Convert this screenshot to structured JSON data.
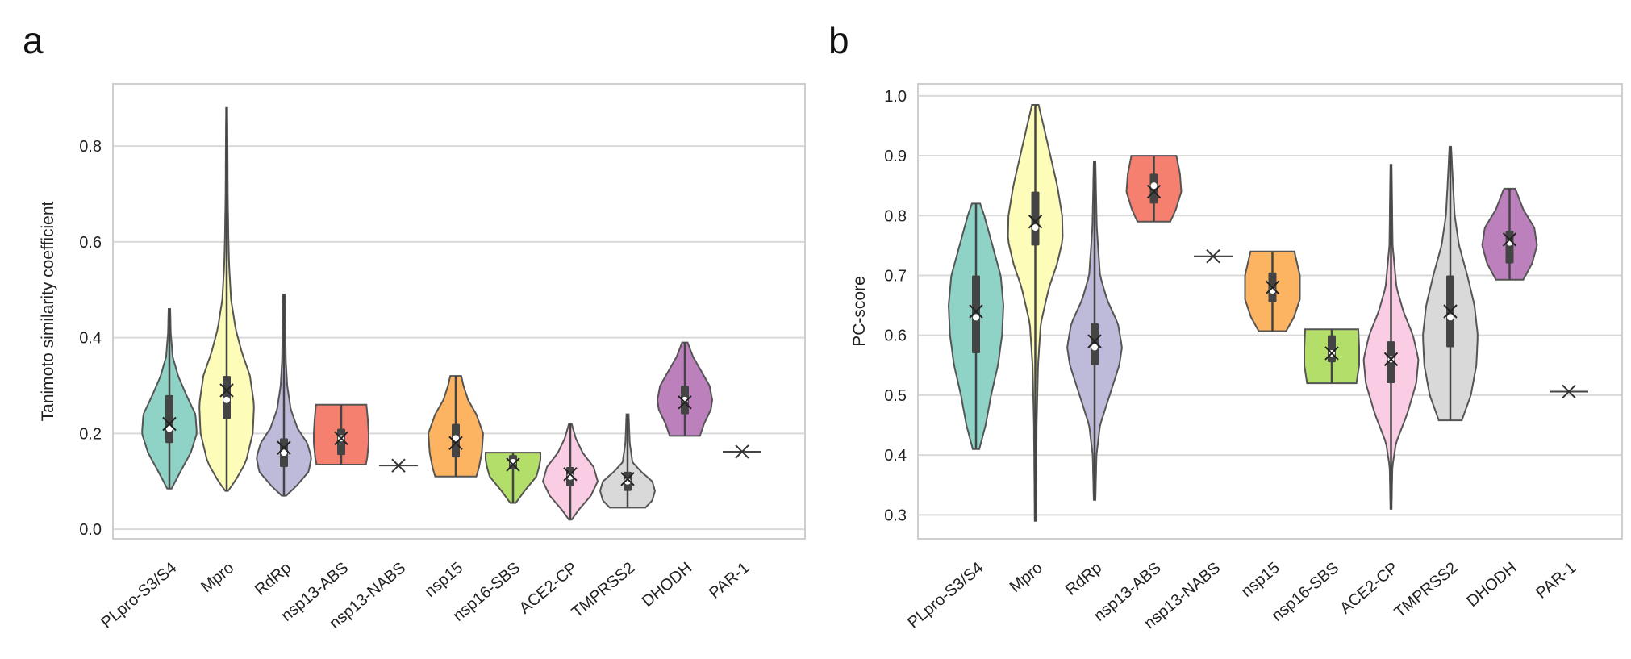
{
  "chart_data": [
    {
      "panel": "a",
      "type": "violin",
      "ylabel": "Tanimoto similarity coefficient",
      "xlabel": "",
      "ylim": [
        -0.02,
        0.93
      ],
      "yticks": [
        0.0,
        0.2,
        0.4,
        0.6,
        0.8
      ],
      "ytick_labels": [
        "0.0",
        "0.2",
        "0.4",
        "0.6",
        "0.8"
      ],
      "grid": true,
      "categories": [
        "PLpro-S3/S4",
        "Mpro",
        "RdRp",
        "nsp13-ABS",
        "nsp13-NABS",
        "nsp15",
        "nsp16-SBS",
        "ACE2-CP",
        "TMPRSS2",
        "DHODH",
        "PAR-1"
      ],
      "colors": [
        "#8fd3c7",
        "#fdfcb8",
        "#bebad9",
        "#f6806f",
        "#ffffff",
        "#fdb462",
        "#b3de69",
        "#fbcde4",
        "#d9d9d9",
        "#bc80bd",
        "#ffffff"
      ],
      "violins": [
        {
          "name": "PLpro-S3/S4",
          "min": 0.085,
          "max": 0.46,
          "q1": 0.18,
          "median": 0.21,
          "q3": 0.28,
          "mean": 0.22,
          "profile": [
            [
              0.085,
              0.08
            ],
            [
              0.12,
              0.4
            ],
            [
              0.16,
              0.78
            ],
            [
              0.2,
              1.0
            ],
            [
              0.24,
              0.95
            ],
            [
              0.28,
              0.62
            ],
            [
              0.32,
              0.32
            ],
            [
              0.36,
              0.12
            ],
            [
              0.41,
              0.05
            ],
            [
              0.46,
              0.03
            ]
          ]
        },
        {
          "name": "Mpro",
          "min": 0.08,
          "max": 0.88,
          "q1": 0.23,
          "median": 0.27,
          "q3": 0.32,
          "mean": 0.29,
          "profile": [
            [
              0.08,
              0.05
            ],
            [
              0.1,
              0.3
            ],
            [
              0.14,
              0.7
            ],
            [
              0.2,
              0.95
            ],
            [
              0.26,
              1.0
            ],
            [
              0.32,
              0.85
            ],
            [
              0.37,
              0.55
            ],
            [
              0.42,
              0.32
            ],
            [
              0.48,
              0.16
            ],
            [
              0.55,
              0.09
            ],
            [
              0.62,
              0.06
            ],
            [
              0.7,
              0.04
            ],
            [
              0.8,
              0.03
            ],
            [
              0.88,
              0.02
            ]
          ]
        },
        {
          "name": "RdRp",
          "min": 0.07,
          "max": 0.49,
          "q1": 0.13,
          "median": 0.16,
          "q3": 0.19,
          "mean": 0.17,
          "profile": [
            [
              0.07,
              0.08
            ],
            [
              0.09,
              0.45
            ],
            [
              0.12,
              0.9
            ],
            [
              0.15,
              1.0
            ],
            [
              0.18,
              0.85
            ],
            [
              0.21,
              0.5
            ],
            [
              0.25,
              0.25
            ],
            [
              0.3,
              0.12
            ],
            [
              0.35,
              0.07
            ],
            [
              0.42,
              0.05
            ],
            [
              0.49,
              0.03
            ]
          ]
        },
        {
          "name": "nsp13-ABS",
          "min": 0.135,
          "max": 0.26,
          "q1": 0.155,
          "median": 0.19,
          "q3": 0.21,
          "mean": 0.19,
          "profile": [
            [
              0.135,
              0.9
            ],
            [
              0.15,
              0.95
            ],
            [
              0.18,
              1.0
            ],
            [
              0.2,
              1.0
            ],
            [
              0.23,
              0.97
            ],
            [
              0.26,
              0.92
            ]
          ]
        },
        {
          "name": "nsp13-NABS",
          "single": 0.133
        },
        {
          "name": "nsp15",
          "min": 0.11,
          "max": 0.32,
          "q1": 0.15,
          "median": 0.19,
          "q3": 0.22,
          "mean": 0.18,
          "profile": [
            [
              0.11,
              0.75
            ],
            [
              0.13,
              0.85
            ],
            [
              0.16,
              0.95
            ],
            [
              0.2,
              1.0
            ],
            [
              0.24,
              0.75
            ],
            [
              0.27,
              0.45
            ],
            [
              0.3,
              0.28
            ],
            [
              0.32,
              0.2
            ]
          ]
        },
        {
          "name": "nsp16-SBS",
          "min": 0.055,
          "max": 0.16,
          "q1": 0.125,
          "median": 0.14,
          "q3": 0.155,
          "mean": 0.135,
          "profile": [
            [
              0.055,
              0.1
            ],
            [
              0.08,
              0.42
            ],
            [
              0.11,
              0.85
            ],
            [
              0.13,
              0.95
            ],
            [
              0.145,
              1.0
            ],
            [
              0.16,
              1.0
            ]
          ]
        },
        {
          "name": "ACE2-CP",
          "min": 0.02,
          "max": 0.22,
          "q1": 0.09,
          "median": 0.11,
          "q3": 0.13,
          "mean": 0.115,
          "profile": [
            [
              0.02,
              0.05
            ],
            [
              0.04,
              0.3
            ],
            [
              0.07,
              0.75
            ],
            [
              0.1,
              1.0
            ],
            [
              0.13,
              0.85
            ],
            [
              0.16,
              0.45
            ],
            [
              0.19,
              0.2
            ],
            [
              0.22,
              0.05
            ]
          ]
        },
        {
          "name": "TMPRSS2",
          "min": 0.045,
          "max": 0.24,
          "q1": 0.08,
          "median": 0.1,
          "q3": 0.12,
          "mean": 0.105,
          "profile": [
            [
              0.045,
              0.65
            ],
            [
              0.06,
              0.9
            ],
            [
              0.08,
              1.0
            ],
            [
              0.1,
              0.9
            ],
            [
              0.12,
              0.5
            ],
            [
              0.14,
              0.18
            ],
            [
              0.18,
              0.08
            ],
            [
              0.24,
              0.04
            ]
          ]
        },
        {
          "name": "DHODH",
          "min": 0.195,
          "max": 0.39,
          "q1": 0.24,
          "median": 0.27,
          "q3": 0.3,
          "mean": 0.265,
          "profile": [
            [
              0.195,
              0.55
            ],
            [
              0.22,
              0.7
            ],
            [
              0.25,
              0.95
            ],
            [
              0.27,
              1.0
            ],
            [
              0.3,
              0.9
            ],
            [
              0.33,
              0.6
            ],
            [
              0.36,
              0.3
            ],
            [
              0.39,
              0.1
            ]
          ]
        },
        {
          "name": "PAR-1",
          "single": 0.162
        }
      ]
    },
    {
      "panel": "b",
      "type": "violin",
      "ylabel": "PC-score",
      "xlabel": "",
      "ylim": [
        0.26,
        1.02
      ],
      "yticks": [
        0.3,
        0.4,
        0.5,
        0.6,
        0.7,
        0.8,
        0.9,
        1.0
      ],
      "ytick_labels": [
        "0.3",
        "0.4",
        "0.5",
        "0.6",
        "0.7",
        "0.8",
        "0.9",
        "1.0"
      ],
      "grid": true,
      "categories": [
        "PLpro-S3/S4",
        "Mpro",
        "RdRp",
        "nsp13-ABS",
        "nsp13-NABS",
        "nsp15",
        "nsp16-SBS",
        "ACE2-CP",
        "TMPRSS2",
        "DHODH",
        "PAR-1"
      ],
      "colors": [
        "#8fd3c7",
        "#fdfcb8",
        "#bebad9",
        "#f6806f",
        "#ffffff",
        "#fdb462",
        "#b3de69",
        "#fbcde4",
        "#d9d9d9",
        "#bc80bd",
        "#ffffff"
      ],
      "violins": [
        {
          "name": "PLpro-S3/S4",
          "min": 0.41,
          "max": 0.82,
          "q1": 0.57,
          "median": 0.63,
          "q3": 0.7,
          "mean": 0.64,
          "profile": [
            [
              0.41,
              0.12
            ],
            [
              0.45,
              0.35
            ],
            [
              0.5,
              0.55
            ],
            [
              0.55,
              0.8
            ],
            [
              0.6,
              0.95
            ],
            [
              0.65,
              1.0
            ],
            [
              0.7,
              0.9
            ],
            [
              0.75,
              0.6
            ],
            [
              0.8,
              0.3
            ],
            [
              0.82,
              0.15
            ]
          ]
        },
        {
          "name": "Mpro",
          "min": 0.29,
          "max": 0.985,
          "q1": 0.75,
          "median": 0.78,
          "q3": 0.84,
          "mean": 0.79,
          "profile": [
            [
              0.29,
              0.02
            ],
            [
              0.45,
              0.05
            ],
            [
              0.55,
              0.1
            ],
            [
              0.62,
              0.2
            ],
            [
              0.68,
              0.5
            ],
            [
              0.72,
              0.8
            ],
            [
              0.76,
              1.0
            ],
            [
              0.8,
              0.98
            ],
            [
              0.85,
              0.8
            ],
            [
              0.9,
              0.55
            ],
            [
              0.95,
              0.3
            ],
            [
              0.985,
              0.12
            ]
          ]
        },
        {
          "name": "RdRp",
          "min": 0.325,
          "max": 0.89,
          "q1": 0.55,
          "median": 0.58,
          "q3": 0.62,
          "mean": 0.59,
          "profile": [
            [
              0.325,
              0.03
            ],
            [
              0.4,
              0.07
            ],
            [
              0.45,
              0.2
            ],
            [
              0.5,
              0.55
            ],
            [
              0.55,
              0.9
            ],
            [
              0.58,
              1.0
            ],
            [
              0.62,
              0.85
            ],
            [
              0.66,
              0.45
            ],
            [
              0.7,
              0.2
            ],
            [
              0.78,
              0.08
            ],
            [
              0.89,
              0.03
            ]
          ]
        },
        {
          "name": "nsp13-ABS",
          "min": 0.79,
          "max": 0.9,
          "q1": 0.82,
          "median": 0.85,
          "q3": 0.87,
          "mean": 0.84,
          "profile": [
            [
              0.79,
              0.6
            ],
            [
              0.81,
              0.8
            ],
            [
              0.84,
              1.0
            ],
            [
              0.87,
              0.95
            ],
            [
              0.9,
              0.82
            ]
          ]
        },
        {
          "name": "nsp13-NABS",
          "single": 0.732
        },
        {
          "name": "nsp15",
          "min": 0.607,
          "max": 0.74,
          "q1": 0.655,
          "median": 0.675,
          "q3": 0.705,
          "mean": 0.68,
          "profile": [
            [
              0.607,
              0.5
            ],
            [
              0.63,
              0.78
            ],
            [
              0.66,
              1.0
            ],
            [
              0.7,
              1.0
            ],
            [
              0.72,
              0.9
            ],
            [
              0.74,
              0.8
            ]
          ]
        },
        {
          "name": "nsp16-SBS",
          "min": 0.52,
          "max": 0.61,
          "q1": 0.555,
          "median": 0.57,
          "q3": 0.6,
          "mean": 0.57,
          "profile": [
            [
              0.52,
              0.9
            ],
            [
              0.55,
              1.0
            ],
            [
              0.58,
              1.0
            ],
            [
              0.61,
              0.97
            ]
          ]
        },
        {
          "name": "ACE2-CP",
          "min": 0.31,
          "max": 0.885,
          "q1": 0.52,
          "median": 0.56,
          "q3": 0.59,
          "mean": 0.56,
          "profile": [
            [
              0.31,
              0.02
            ],
            [
              0.38,
              0.05
            ],
            [
              0.42,
              0.18
            ],
            [
              0.47,
              0.6
            ],
            [
              0.52,
              0.92
            ],
            [
              0.56,
              1.0
            ],
            [
              0.6,
              0.8
            ],
            [
              0.64,
              0.45
            ],
            [
              0.68,
              0.2
            ],
            [
              0.75,
              0.06
            ],
            [
              0.885,
              0.02
            ]
          ]
        },
        {
          "name": "TMPRSS2",
          "min": 0.458,
          "max": 0.915,
          "q1": 0.58,
          "median": 0.63,
          "q3": 0.7,
          "mean": 0.64,
          "profile": [
            [
              0.458,
              0.42
            ],
            [
              0.5,
              0.75
            ],
            [
              0.55,
              0.95
            ],
            [
              0.6,
              1.0
            ],
            [
              0.65,
              0.88
            ],
            [
              0.7,
              0.62
            ],
            [
              0.75,
              0.32
            ],
            [
              0.8,
              0.16
            ],
            [
              0.85,
              0.1
            ],
            [
              0.915,
              0.03
            ]
          ]
        },
        {
          "name": "DHODH",
          "min": 0.693,
          "max": 0.845,
          "q1": 0.72,
          "median": 0.755,
          "q3": 0.775,
          "mean": 0.76,
          "profile": [
            [
              0.693,
              0.5
            ],
            [
              0.72,
              0.82
            ],
            [
              0.75,
              1.0
            ],
            [
              0.78,
              0.9
            ],
            [
              0.81,
              0.5
            ],
            [
              0.84,
              0.25
            ],
            [
              0.845,
              0.2
            ]
          ]
        },
        {
          "name": "PAR-1",
          "single": 0.506
        }
      ]
    }
  ]
}
